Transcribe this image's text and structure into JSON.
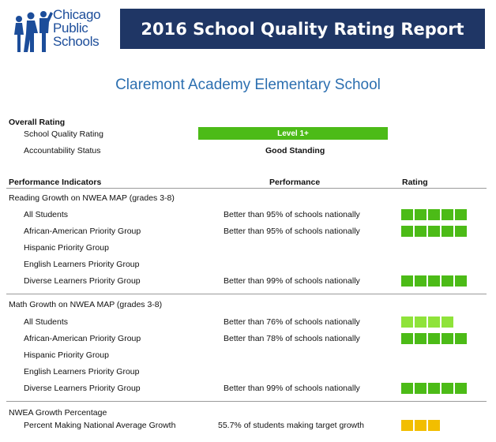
{
  "header": {
    "logo_lines": [
      "Chicago",
      "Public",
      "Schools"
    ],
    "report_title": "2016 School Quality Rating Report"
  },
  "school_name": "Claremont Academy Elementary School",
  "overall": {
    "heading": "Overall Rating",
    "quality_label": "School Quality Rating",
    "quality_value": "Level 1+",
    "accountability_label": "Accountability Status",
    "accountability_value": "Good Standing"
  },
  "columns": {
    "indicators": "Performance Indicators",
    "performance": "Performance",
    "rating": "Rating"
  },
  "sections": [
    {
      "title": "Reading Growth on NWEA MAP (grades 3-8)",
      "rows": [
        {
          "label": "All Students",
          "performance": "Better than 95% of schools nationally",
          "rating": 5
        },
        {
          "label": "African-American Priority Group",
          "performance": "Better than 95% of schools nationally",
          "rating": 5
        },
        {
          "label": "Hispanic Priority Group",
          "performance": "",
          "rating": 0
        },
        {
          "label": "English Learners Priority Group",
          "performance": "",
          "rating": 0
        },
        {
          "label": "Diverse Learners Priority Group",
          "performance": "Better than 99% of schools nationally",
          "rating": 5
        }
      ]
    },
    {
      "title": "Math Growth on NWEA MAP (grades 3-8)",
      "rows": [
        {
          "label": "All Students",
          "performance": "Better than 76% of schools nationally",
          "rating": 4
        },
        {
          "label": "African-American Priority Group",
          "performance": "Better than 78% of schools nationally",
          "rating": 5
        },
        {
          "label": "Hispanic Priority Group",
          "performance": "",
          "rating": 0
        },
        {
          "label": "English Learners Priority Group",
          "performance": "",
          "rating": 0
        },
        {
          "label": "Diverse Learners Priority Group",
          "performance": "Better than 99% of schools nationally",
          "rating": 5
        }
      ]
    },
    {
      "title": "NWEA Growth Percentage",
      "rows": [
        {
          "label": "Percent Making National Average Growth",
          "performance": "55.7% of students making target growth",
          "rating": 3
        }
      ]
    }
  ],
  "rating_colors": {
    "5": "#4cbb17",
    "4": "#8fe33a",
    "3": "#f2be00"
  },
  "icons": [
    "children-silhouette-icon"
  ]
}
